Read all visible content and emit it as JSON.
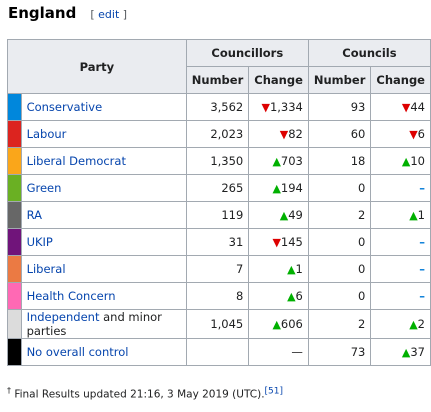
{
  "heading": {
    "title": "England",
    "edit_open": "[",
    "edit_label": "edit",
    "edit_close": "]"
  },
  "table": {
    "party_header": "Party",
    "councillors_header": "Councillors",
    "councils_header": "Councils",
    "number_header": "Number",
    "change_header": "Change",
    "rows": [
      {
        "party": "Conservative",
        "party_suffix": "",
        "color": "#0087dc",
        "councillors": "3,562",
        "councillors_change": "1,334",
        "councillors_dir": "down",
        "councils": "93",
        "councils_change": "44",
        "councils_dir": "down"
      },
      {
        "party": "Labour",
        "party_suffix": "",
        "color": "#dc241f",
        "councillors": "2,023",
        "councillors_change": "82",
        "councillors_dir": "down",
        "councils": "60",
        "councils_change": "6",
        "councils_dir": "down"
      },
      {
        "party": "Liberal Democrat",
        "party_suffix": "",
        "color": "#faa61a",
        "councillors": "1,350",
        "councillors_change": "703",
        "councillors_dir": "up",
        "councils": "18",
        "councils_change": "10",
        "councils_dir": "up"
      },
      {
        "party": "Green",
        "party_suffix": "",
        "color": "#6ab023",
        "councillors": "265",
        "councillors_change": "194",
        "councillors_dir": "up",
        "councils": "0",
        "councils_change": "",
        "councils_dir": "same"
      },
      {
        "party": "RA",
        "party_suffix": "",
        "color": "#676767",
        "councillors": "119",
        "councillors_change": "49",
        "councillors_dir": "up",
        "councils": "2",
        "councils_change": "1",
        "councils_dir": "up"
      },
      {
        "party": "UKIP",
        "party_suffix": "",
        "color": "#70147a",
        "councillors": "31",
        "councillors_change": "145",
        "councillors_dir": "down",
        "councils": "0",
        "councils_change": "",
        "councils_dir": "same"
      },
      {
        "party": "Liberal",
        "party_suffix": "",
        "color": "#eb7a43",
        "councillors": "7",
        "councillors_change": "1",
        "councillors_dir": "up",
        "councils": "0",
        "councils_change": "",
        "councils_dir": "same"
      },
      {
        "party": "Health Concern",
        "party_suffix": "",
        "color": "#ff69b4",
        "councillors": "8",
        "councillors_change": "6",
        "councillors_dir": "up",
        "councils": "0",
        "councils_change": "",
        "councils_dir": "same"
      },
      {
        "party": "Independent",
        "party_suffix": " and minor parties",
        "color": "#dcdcdc",
        "councillors": "1,045",
        "councillors_change": "606",
        "councillors_dir": "up",
        "councils": "2",
        "councils_change": "2",
        "councils_dir": "up"
      },
      {
        "party": "No overall control",
        "party_suffix": "",
        "color": "#000000",
        "councillors": "",
        "councillors_change": "—",
        "councillors_dir": "dash",
        "councils": "73",
        "councils_change": "37",
        "councils_dir": "up"
      }
    ]
  },
  "footnote": {
    "marker": "†",
    "text": " Final Results updated 21:16, 3 May 2019 (UTC).",
    "ref": "[51]"
  }
}
